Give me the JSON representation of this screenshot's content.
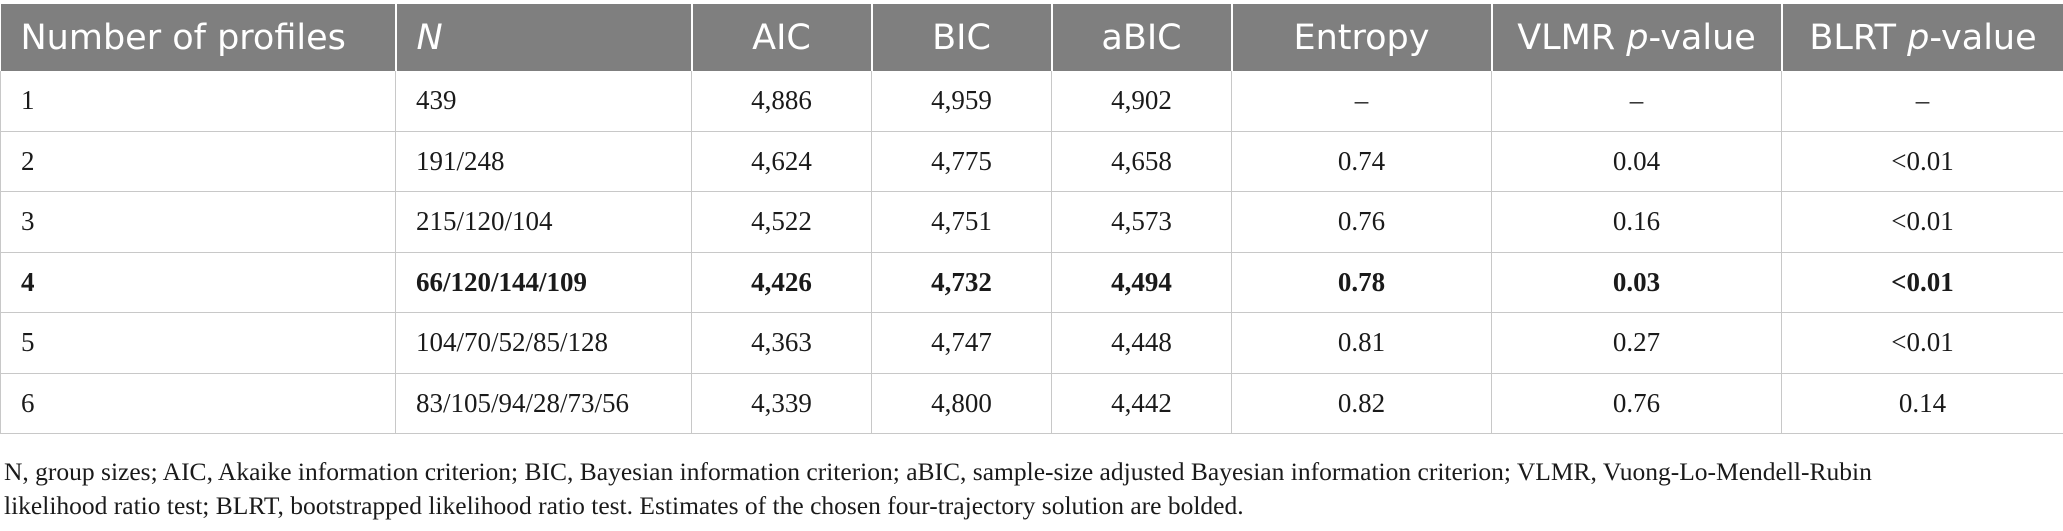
{
  "table": {
    "headers": [
      {
        "pre": "Number of profiles",
        "it": "",
        "post": ""
      },
      {
        "pre": "",
        "it": "N",
        "post": ""
      },
      {
        "pre": "AIC",
        "it": "",
        "post": ""
      },
      {
        "pre": "BIC",
        "it": "",
        "post": ""
      },
      {
        "pre": "aBIC",
        "it": "",
        "post": ""
      },
      {
        "pre": "Entropy",
        "it": "",
        "post": ""
      },
      {
        "pre": "VLMR ",
        "it": "p",
        "post": "-value"
      },
      {
        "pre": "BLRT ",
        "it": "p",
        "post": "-value"
      }
    ],
    "rows": [
      {
        "bold": false,
        "cells": [
          "1",
          "439",
          "4,886",
          "4,959",
          "4,902",
          "–",
          "–",
          "–"
        ]
      },
      {
        "bold": false,
        "cells": [
          "2",
          "191/248",
          "4,624",
          "4,775",
          "4,658",
          "0.74",
          "0.04",
          "<0.01"
        ]
      },
      {
        "bold": false,
        "cells": [
          "3",
          "215/120/104",
          "4,522",
          "4,751",
          "4,573",
          "0.76",
          "0.16",
          "<0.01"
        ]
      },
      {
        "bold": true,
        "cells": [
          "4",
          "66/120/144/109",
          "4,426",
          "4,732",
          "4,494",
          "0.78",
          "0.03",
          "<0.01"
        ]
      },
      {
        "bold": false,
        "cells": [
          "5",
          "104/70/52/85/128",
          "4,363",
          "4,747",
          "4,448",
          "0.81",
          "0.27",
          "<0.01"
        ]
      },
      {
        "bold": false,
        "cells": [
          "6",
          "83/105/94/28/73/56",
          "4,339",
          "4,800",
          "4,442",
          "0.82",
          "0.76",
          "0.14"
        ]
      }
    ]
  },
  "footnote": {
    "line1": "N, group sizes; AIC, Akaike information criterion; BIC, Bayesian information criterion; aBIC, sample-size adjusted Bayesian information criterion; VLMR, Vuong-Lo-Mendell-Rubin",
    "line2": "likelihood ratio test; BLRT, bootstrapped likelihood ratio test. Estimates of the chosen four-trajectory solution are bolded."
  }
}
